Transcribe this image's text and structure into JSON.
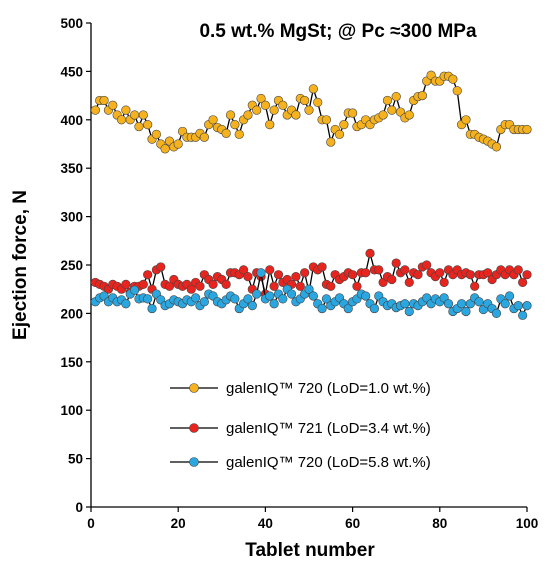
{
  "chart_data": {
    "type": "line",
    "title": "0.5 wt.% MgSt; @ Pc ≈300 MPa",
    "xlabel": "Tablet number",
    "ylabel": "Ejection force, N",
    "xlim": [
      0,
      100
    ],
    "ylim": [
      0,
      500
    ],
    "xticks": [
      0,
      20,
      40,
      60,
      80,
      100
    ],
    "yticks": [
      0,
      50,
      100,
      150,
      200,
      250,
      300,
      350,
      400,
      450,
      500
    ],
    "grid": false,
    "legend_position": "bottom-center",
    "x": [
      1,
      2,
      3,
      4,
      5,
      6,
      7,
      8,
      9,
      10,
      11,
      12,
      13,
      14,
      15,
      16,
      17,
      18,
      19,
      20,
      21,
      22,
      23,
      24,
      25,
      26,
      27,
      28,
      29,
      30,
      31,
      32,
      33,
      34,
      35,
      36,
      37,
      38,
      39,
      40,
      41,
      42,
      43,
      44,
      45,
      46,
      47,
      48,
      49,
      50,
      51,
      52,
      53,
      54,
      55,
      56,
      57,
      58,
      59,
      60,
      61,
      62,
      63,
      64,
      65,
      66,
      67,
      68,
      69,
      70,
      71,
      72,
      73,
      74,
      75,
      76,
      77,
      78,
      79,
      80,
      81,
      82,
      83,
      84,
      85,
      86,
      87,
      88,
      89,
      90,
      91,
      92,
      93,
      94,
      95,
      96,
      97,
      98,
      99,
      100
    ],
    "series": [
      {
        "name": "galenIQ™ 720 (LoD=1.0 wt.%)",
        "color": "#f5b21e",
        "values": [
          410,
          420,
          420,
          410,
          415,
          405,
          400,
          410,
          400,
          405,
          393,
          405,
          395,
          380,
          385,
          375,
          370,
          378,
          372,
          375,
          388,
          382,
          382,
          382,
          386,
          382,
          395,
          400,
          392,
          390,
          386,
          405,
          395,
          385,
          400,
          405,
          415,
          410,
          422,
          415,
          395,
          410,
          420,
          415,
          405,
          410,
          405,
          422,
          420,
          410,
          432,
          418,
          400,
          400,
          377,
          390,
          385,
          395,
          407,
          407,
          393,
          395,
          400,
          395,
          400,
          402,
          405,
          420,
          410,
          424,
          408,
          402,
          405,
          420,
          424,
          425,
          440,
          446,
          440,
          440,
          445,
          445,
          442,
          430,
          395,
          400,
          385,
          385,
          382,
          380,
          378,
          375,
          372,
          390,
          395,
          395,
          390,
          390,
          390,
          390
        ]
      },
      {
        "name": "galenIQ™ 721 (LoD=3.4 wt.%)",
        "color": "#e8241f",
        "values": [
          232,
          230,
          228,
          225,
          230,
          228,
          225,
          230,
          222,
          228,
          228,
          230,
          240,
          225,
          245,
          248,
          230,
          228,
          235,
          230,
          228,
          230,
          225,
          232,
          228,
          240,
          235,
          230,
          238,
          235,
          230,
          242,
          242,
          240,
          245,
          238,
          225,
          242,
          238,
          220,
          245,
          228,
          240,
          232,
          235,
          230,
          238,
          228,
          242,
          222,
          248,
          245,
          248,
          230,
          228,
          240,
          235,
          238,
          242,
          240,
          228,
          242,
          242,
          262,
          245,
          245,
          232,
          238,
          235,
          252,
          242,
          245,
          232,
          242,
          240,
          248,
          250,
          242,
          238,
          242,
          232,
          245,
          240,
          245,
          240,
          242,
          240,
          228,
          240,
          240,
          242,
          235,
          240,
          245,
          240,
          245,
          240,
          245,
          232,
          240
        ]
      },
      {
        "name": "galenIQ™ 720 (LoD=5.8 wt.%)",
        "color": "#2aa7e0",
        "values": [
          212,
          216,
          218,
          212,
          216,
          212,
          214,
          210,
          220,
          224,
          215,
          216,
          215,
          205,
          220,
          214,
          208,
          210,
          214,
          212,
          210,
          214,
          212,
          216,
          208,
          212,
          220,
          218,
          212,
          210,
          214,
          218,
          215,
          205,
          210,
          215,
          208,
          220,
          242,
          215,
          218,
          210,
          220,
          215,
          225,
          220,
          212,
          215,
          220,
          225,
          218,
          210,
          205,
          215,
          208,
          212,
          216,
          210,
          205,
          212,
          215,
          220,
          218,
          210,
          205,
          218,
          212,
          208,
          210,
          206,
          208,
          210,
          202,
          210,
          208,
          212,
          216,
          210,
          215,
          212,
          216,
          210,
          202,
          205,
          210,
          202,
          210,
          216,
          212,
          204,
          210,
          205,
          200,
          215,
          210,
          218,
          205,
          208,
          198,
          208
        ]
      }
    ]
  }
}
